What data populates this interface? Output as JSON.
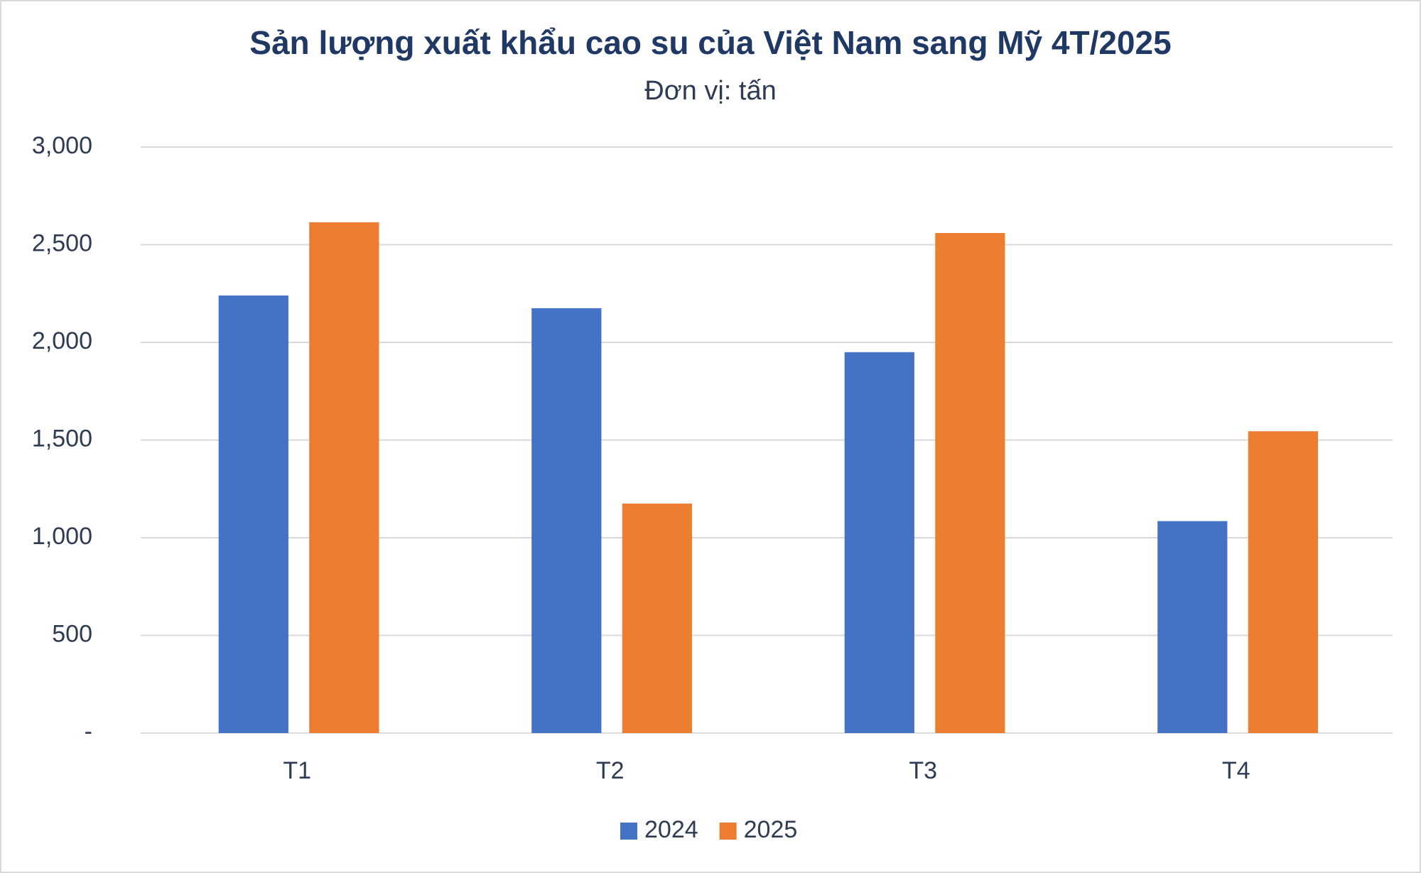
{
  "chart_data": {
    "type": "bar",
    "title": "Sản lượng xuất khẩu cao su của Việt Nam sang Mỹ 4T/2025",
    "subtitle": "Đơn vị: tấn",
    "categories": [
      "T1",
      "T2",
      "T3",
      "T4"
    ],
    "series": [
      {
        "name": "2024",
        "color": "#4472c4",
        "values": [
          2240,
          2175,
          1950,
          1085
        ]
      },
      {
        "name": "2025",
        "color": "#ed7d31",
        "values": [
          2615,
          1175,
          2560,
          1545
        ]
      }
    ],
    "ylim": [
      0,
      3000
    ],
    "yticks": [
      {
        "value": 0,
        "label": "-"
      },
      500,
      {
        "value": 1000,
        "label": "1,000"
      },
      {
        "value": 1500,
        "label": "1,500"
      },
      {
        "value": 2000,
        "label": "2,000"
      },
      {
        "value": 2500,
        "label": "2,500"
      },
      {
        "value": 3000,
        "label": "3,000"
      }
    ],
    "grid": true,
    "legend": "bottom"
  }
}
